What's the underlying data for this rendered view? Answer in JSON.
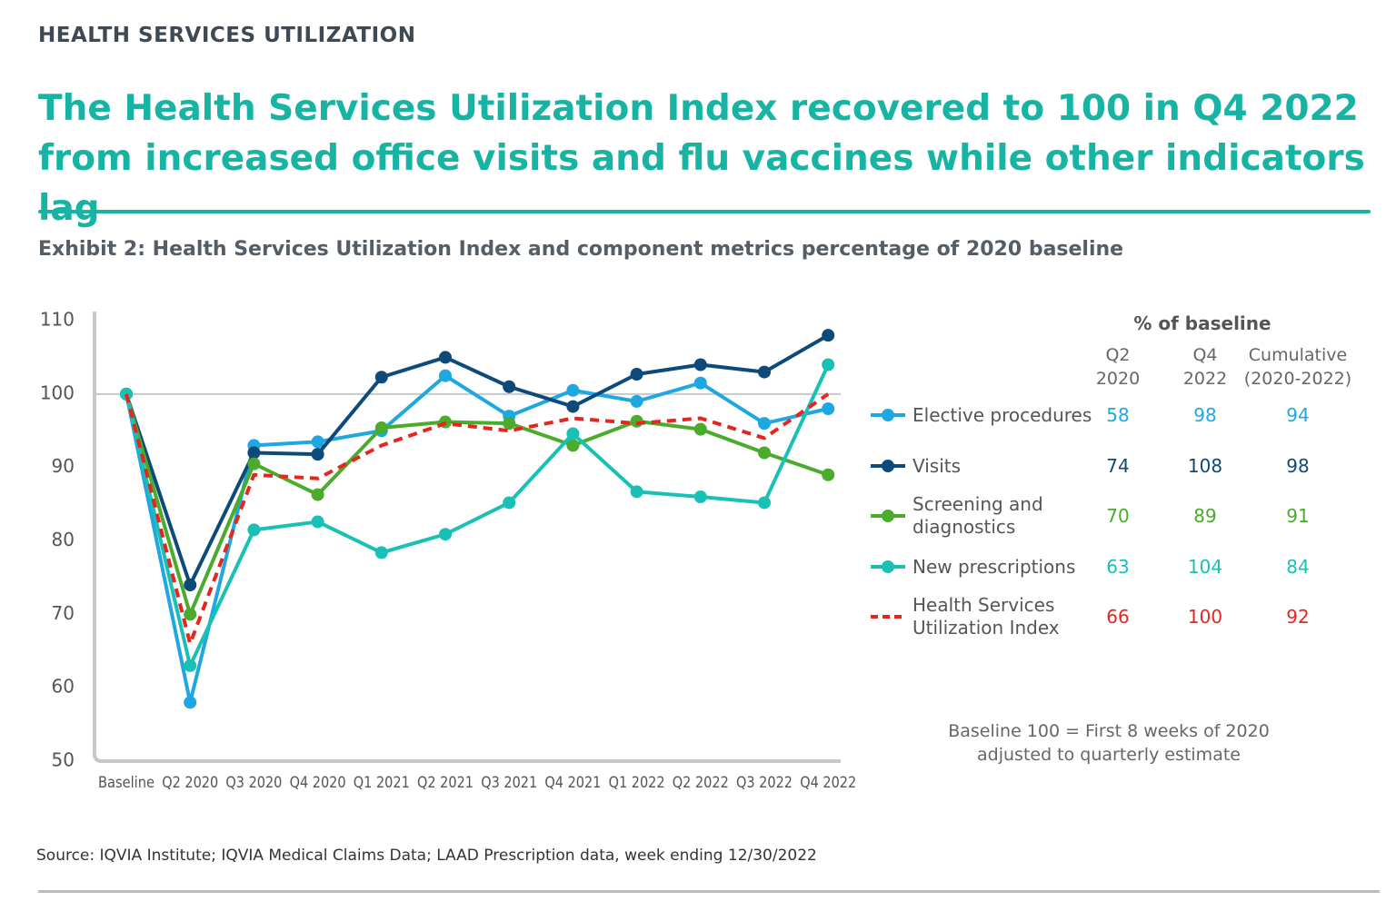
{
  "header": "HEALTH SERVICES UTILIZATION",
  "title": "The Health Services Utilization Index recovered to 100 in Q4 2022 from increased office visits and flu vaccines while other indicators lag",
  "exhibit": "Exhibit 2: Health Services Utilization Index and component metrics percentage of 2020 baseline",
  "chart_data": {
    "type": "line",
    "categories": [
      "Baseline",
      "Q2 2020",
      "Q3 2020",
      "Q4 2020",
      "Q1 2021",
      "Q2 2021",
      "Q3 2021",
      "Q4 2021",
      "Q1 2022",
      "Q2 2022",
      "Q3 2022",
      "Q4 2022"
    ],
    "ylim": [
      50,
      110
    ],
    "yticks": [
      50,
      60,
      70,
      80,
      90,
      100,
      110
    ],
    "reference_line": 100,
    "series": [
      {
        "name": "Elective procedures",
        "color": "#1ea7e1",
        "values": [
          100,
          58,
          93,
          93.5,
          95,
          102.5,
          97,
          100.5,
          99,
          101.5,
          96,
          98
        ]
      },
      {
        "name": "Visits",
        "color": "#0d4a7a",
        "values": [
          100,
          74,
          92,
          91.8,
          102.3,
          105,
          101,
          98.3,
          102.7,
          104,
          103,
          108
        ]
      },
      {
        "name": "Screening and diagnostics",
        "color": "#4aab2c",
        "values": [
          100,
          70,
          90.5,
          86.3,
          95.4,
          96.2,
          96,
          93,
          96.3,
          95.2,
          92,
          89
        ]
      },
      {
        "name": "New prescriptions",
        "color": "#19c0b5",
        "values": [
          100,
          63,
          81.5,
          82.6,
          78.4,
          80.9,
          85.2,
          94.6,
          86.7,
          86,
          85.2,
          104
        ]
      },
      {
        "name": "Health Services Utilization Index",
        "color": "#e5261f",
        "dashed": true,
        "values": [
          100,
          66,
          89,
          88.5,
          93,
          96,
          95,
          96.7,
          96,
          96.7,
          94,
          100
        ]
      }
    ]
  },
  "summary_table": {
    "title": "% of baseline",
    "columns": [
      "Q2 2020",
      "Q4 2022",
      "Cumulative (2020-2022)"
    ],
    "rows": [
      [
        58,
        98,
        94
      ],
      [
        74,
        108,
        98
      ],
      [
        70,
        89,
        91
      ],
      [
        63,
        104,
        84
      ],
      [
        66,
        100,
        92
      ]
    ]
  },
  "note": "Baseline 100 = First 8 weeks of 2020 adjusted to quarterly estimate",
  "source": "Source: IQVIA Institute; IQVIA Medical Claims Data; LAAD Prescription data, week ending 12/30/2022"
}
